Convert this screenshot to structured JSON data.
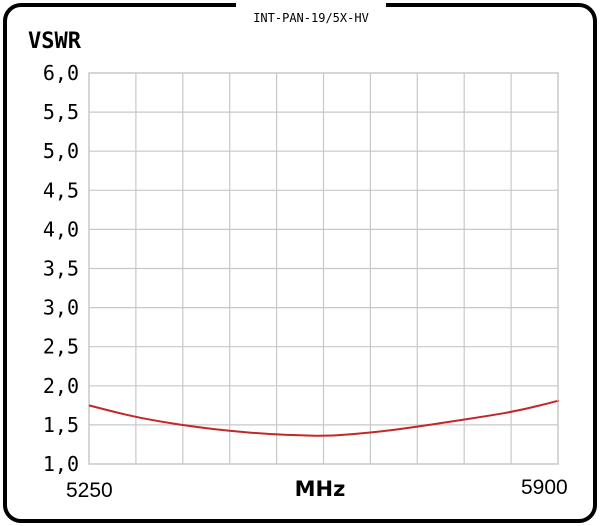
{
  "chart_data": {
    "type": "line",
    "title": "INT-PAN-19/5X-HV",
    "ylabel": "VSWR",
    "xlabel": "MHz",
    "xlim": [
      5250,
      5900
    ],
    "ylim": [
      1.0,
      6.0
    ],
    "y_ticks": [
      "1,0",
      "1,5",
      "2,0",
      "2,5",
      "3,0",
      "3,5",
      "4,0",
      "4,5",
      "5,0",
      "5,5",
      "6,0"
    ],
    "x_tick_labels": [
      "5250",
      "5900"
    ],
    "grid": true,
    "colors": {
      "line": "#c0282a",
      "grid": "#c8c8c8",
      "frame": "#000000"
    },
    "series": [
      {
        "x": [
          5250,
          5300,
          5350,
          5400,
          5450,
          5500,
          5550,
          5575,
          5600,
          5650,
          5700,
          5750,
          5800,
          5850,
          5900
        ],
        "y": [
          1.75,
          1.63,
          1.54,
          1.47,
          1.42,
          1.38,
          1.365,
          1.36,
          1.37,
          1.41,
          1.47,
          1.54,
          1.61,
          1.69,
          1.81
        ]
      }
    ]
  }
}
